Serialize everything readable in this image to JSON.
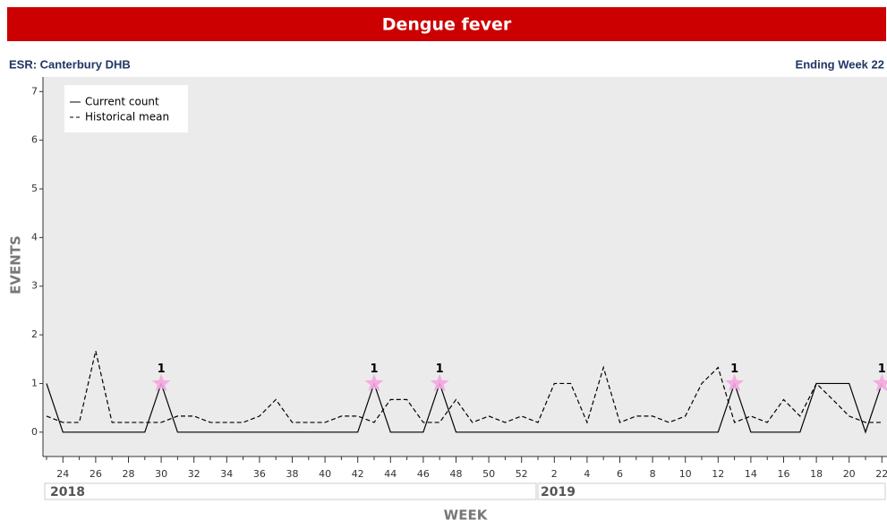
{
  "chart_data": {
    "type": "line",
    "title": "Dengue fever",
    "subtitle_left": "ESR: Canterbury DHB",
    "subtitle_right": "Ending Week 22",
    "x_label": "WEEK",
    "y_label": "EVENTS",
    "year_labels": [
      "2018",
      "2019"
    ],
    "categories": [
      null,
      "24",
      null,
      "26",
      null,
      "28",
      null,
      "30",
      null,
      "32",
      null,
      "34",
      null,
      "36",
      null,
      "38",
      null,
      "40",
      null,
      "42",
      null,
      "44",
      null,
      "46",
      null,
      "48",
      null,
      "50",
      null,
      "52",
      null,
      "2",
      null,
      "4",
      null,
      "6",
      null,
      "8",
      null,
      "10",
      null,
      "12",
      null,
      "14",
      null,
      "16",
      null,
      "18",
      null,
      "20",
      null,
      "22"
    ],
    "series": [
      {
        "name": "Current count",
        "color": "#000000",
        "dash": false,
        "values": [
          1,
          0,
          0,
          0,
          0,
          0,
          0,
          1,
          0,
          0,
          0,
          0,
          0,
          0,
          0,
          0,
          0,
          0,
          0,
          0,
          1,
          0,
          0,
          0,
          1,
          0,
          0,
          0,
          0,
          0,
          0,
          0,
          0,
          0,
          0,
          0,
          0,
          0,
          0,
          0,
          0,
          0,
          1,
          0,
          0,
          0,
          0,
          1,
          1,
          1,
          0,
          1
        ],
        "value_labels": [
          null,
          null,
          null,
          null,
          null,
          null,
          null,
          "1",
          null,
          null,
          null,
          null,
          null,
          null,
          null,
          null,
          null,
          null,
          null,
          null,
          "1",
          null,
          null,
          null,
          "1",
          null,
          null,
          null,
          null,
          null,
          null,
          null,
          null,
          null,
          null,
          null,
          null,
          null,
          null,
          null,
          null,
          null,
          "1",
          null,
          null,
          null,
          null,
          null,
          null,
          null,
          null,
          "1"
        ]
      },
      {
        "name": "Historical mean",
        "color": "#000000",
        "dash": true,
        "values": [
          0.33,
          0.2,
          0.2,
          1.67,
          0.2,
          0.2,
          0.2,
          0.2,
          0.33,
          0.33,
          0.2,
          0.2,
          0.2,
          0.33,
          0.67,
          0.2,
          0.2,
          0.2,
          0.33,
          0.33,
          0.2,
          0.67,
          0.67,
          0.2,
          0.2,
          0.67,
          0.2,
          0.33,
          0.2,
          0.33,
          0.2,
          1.0,
          1.0,
          0.2,
          1.33,
          0.2,
          0.33,
          0.33,
          0.2,
          0.33,
          1.0,
          1.33,
          0.2,
          0.33,
          0.2,
          0.67,
          0.33,
          1.0,
          0.67,
          0.33,
          0.2,
          0.2
        ]
      }
    ],
    "marker_color": "#f4a6e0",
    "ylim": [
      -0.5,
      7.3
    ],
    "yticks": [
      0,
      1,
      2,
      3,
      4,
      5,
      6,
      7
    ]
  }
}
